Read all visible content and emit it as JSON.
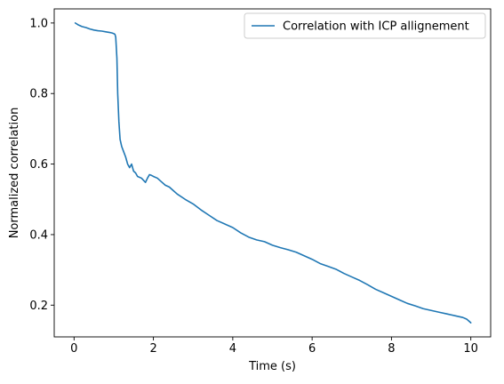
{
  "chart_data": {
    "type": "line",
    "title": "",
    "xlabel": "Time (s)",
    "ylabel": "Normalized correlation",
    "xlim": [
      -0.5,
      10.5
    ],
    "ylim": [
      0.11,
      1.04
    ],
    "xticks": [
      0,
      2,
      4,
      6,
      8,
      10
    ],
    "yticks": [
      0.2,
      0.4,
      0.6,
      0.8,
      1.0
    ],
    "xtick_labels": [
      "0",
      "2",
      "4",
      "6",
      "8",
      "10"
    ],
    "ytick_labels": [
      "0.2",
      "0.4",
      "0.6",
      "0.8",
      "1.0"
    ],
    "grid": false,
    "legend_position": "top-right",
    "series": [
      {
        "name": "Correlation with ICP allignement",
        "color": "#1f77b4",
        "x": [
          0.03,
          0.1,
          0.2,
          0.3,
          0.4,
          0.5,
          0.6,
          0.7,
          0.8,
          0.9,
          0.95,
          1.0,
          1.03,
          1.05,
          1.08,
          1.1,
          1.13,
          1.16,
          1.2,
          1.25,
          1.3,
          1.35,
          1.4,
          1.45,
          1.5,
          1.55,
          1.6,
          1.7,
          1.8,
          1.85,
          1.9,
          1.95,
          2.0,
          2.1,
          2.2,
          2.3,
          2.4,
          2.5,
          2.6,
          2.8,
          3.0,
          3.2,
          3.4,
          3.6,
          3.8,
          4.0,
          4.2,
          4.4,
          4.6,
          4.8,
          5.0,
          5.2,
          5.4,
          5.6,
          5.8,
          6.0,
          6.2,
          6.4,
          6.6,
          6.8,
          7.0,
          7.2,
          7.4,
          7.6,
          7.8,
          8.0,
          8.2,
          8.4,
          8.6,
          8.8,
          9.0,
          9.2,
          9.4,
          9.6,
          9.8,
          9.9,
          9.95,
          10.0
        ],
        "y": [
          1.0,
          0.995,
          0.99,
          0.987,
          0.983,
          0.98,
          0.978,
          0.977,
          0.975,
          0.973,
          0.972,
          0.97,
          0.968,
          0.96,
          0.9,
          0.8,
          0.72,
          0.67,
          0.65,
          0.635,
          0.62,
          0.6,
          0.59,
          0.6,
          0.58,
          0.575,
          0.565,
          0.56,
          0.548,
          0.56,
          0.57,
          0.568,
          0.565,
          0.56,
          0.55,
          0.54,
          0.535,
          0.525,
          0.515,
          0.5,
          0.487,
          0.47,
          0.455,
          0.44,
          0.43,
          0.42,
          0.405,
          0.393,
          0.385,
          0.38,
          0.37,
          0.363,
          0.357,
          0.35,
          0.34,
          0.33,
          0.318,
          0.31,
          0.302,
          0.29,
          0.28,
          0.27,
          0.258,
          0.245,
          0.235,
          0.225,
          0.215,
          0.205,
          0.198,
          0.19,
          0.185,
          0.18,
          0.175,
          0.17,
          0.165,
          0.16,
          0.155,
          0.15
        ]
      }
    ]
  }
}
